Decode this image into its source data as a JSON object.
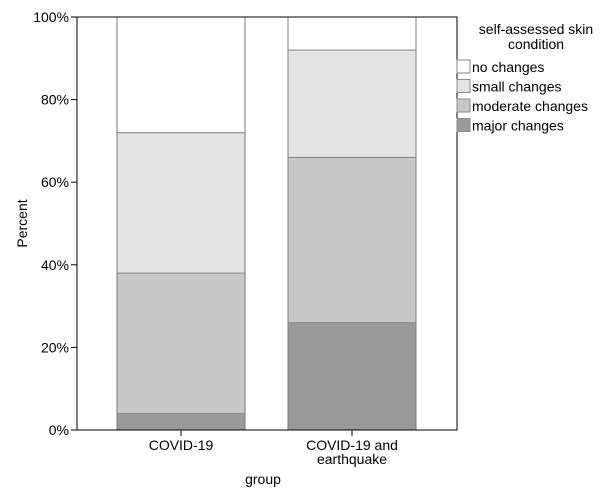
{
  "chart_data": {
    "type": "bar",
    "stacked": true,
    "orientation": "vertical",
    "categories": [
      [
        "COVID-19"
      ],
      [
        "COVID-19 and",
        "earthquake"
      ]
    ],
    "series": [
      {
        "name": "major changes",
        "values": [
          4,
          26
        ],
        "color": "#9a9a9a"
      },
      {
        "name": "moderate changes",
        "values": [
          34,
          40
        ],
        "color": "#c8c8c8"
      },
      {
        "name": "small changes",
        "values": [
          34,
          26
        ],
        "color": "#e3e3e3"
      },
      {
        "name": "no changes",
        "values": [
          28,
          8
        ],
        "color": "#ffffff"
      }
    ],
    "xlabel": "group",
    "ylabel": "Percent",
    "ylim": [
      0,
      100
    ],
    "yticks": [
      0,
      20,
      40,
      60,
      80,
      100
    ],
    "ytick_format": "%",
    "grid": false,
    "legend": {
      "title": [
        "self-assessed skin",
        "condition"
      ],
      "position": "top-right",
      "order": [
        "no changes",
        "small changes",
        "moderate changes",
        "major changes"
      ]
    }
  }
}
